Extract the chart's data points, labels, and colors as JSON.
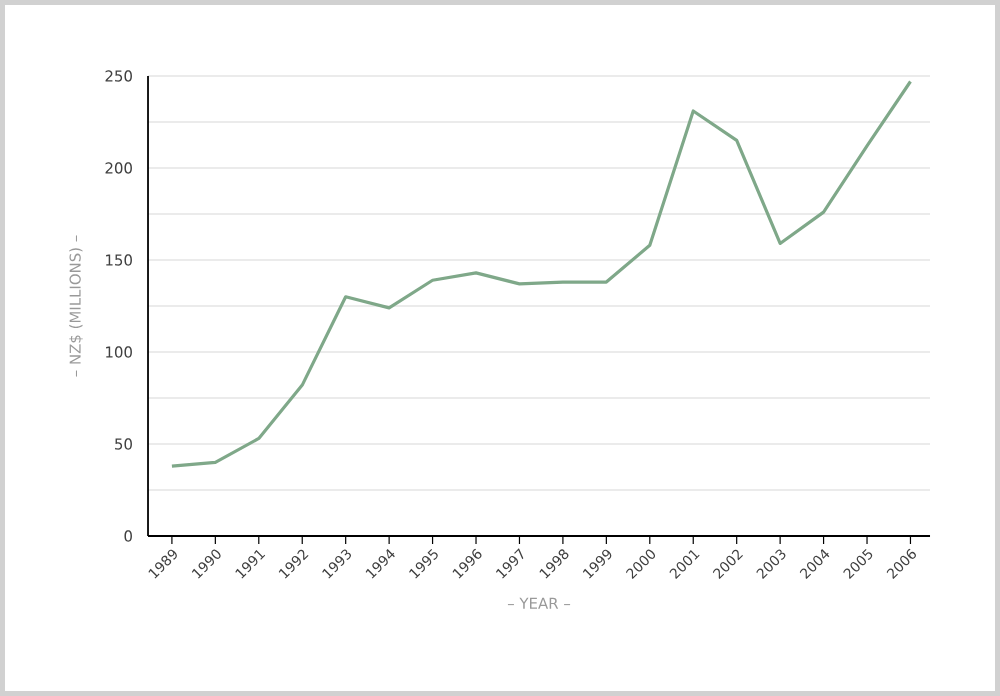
{
  "chart_data": {
    "type": "line",
    "xlabel": "– YEAR –",
    "ylabel": "– NZ$ (MILLIONS) –",
    "categories": [
      "1989",
      "1990",
      "1991",
      "1992",
      "1993",
      "1994",
      "1995",
      "1996",
      "1997",
      "1998",
      "1999",
      "2000",
      "2001",
      "2002",
      "2003",
      "2004",
      "2005",
      "2006"
    ],
    "series": [
      {
        "color": "#7fa889",
        "values": [
          38,
          40,
          53,
          82,
          130,
          124,
          139,
          143,
          137,
          138,
          138,
          158,
          231,
          215,
          159,
          176,
          212,
          247
        ]
      }
    ],
    "ylim": [
      0,
      250
    ],
    "yticks": [
      0,
      {
        "value": 25,
        "label": null
      },
      50,
      {
        "value": 75,
        "label": null
      },
      100,
      {
        "value": 125,
        "label": null
      },
      150,
      {
        "value": 175,
        "label": null
      },
      200,
      {
        "value": 225,
        "label": null
      },
      250
    ],
    "grid": "y",
    "marker": "none",
    "line_style": "solid"
  }
}
